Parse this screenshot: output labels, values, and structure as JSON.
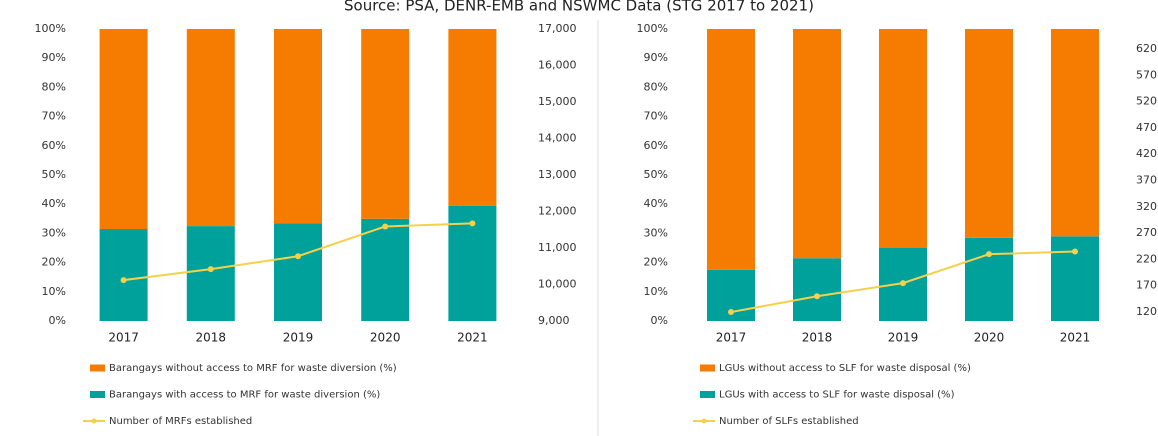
{
  "source": "Source: PSA, DENR-EMB and NSWMC Data (STG 2017 to 2021)",
  "chart_data": [
    {
      "type": "bar",
      "stacked": true,
      "categories": [
        "2017",
        "2018",
        "2019",
        "2020",
        "2021"
      ],
      "ylim": [
        0,
        100
      ],
      "yticks": [
        {
          "value": 0,
          "label": "0%"
        },
        {
          "value": 10,
          "label": "10%"
        },
        {
          "value": 20,
          "label": "20%"
        },
        {
          "value": 30,
          "label": "30%"
        },
        {
          "value": 40,
          "label": "40%"
        },
        {
          "value": 50,
          "label": "50%"
        },
        {
          "value": 60,
          "label": "60%"
        },
        {
          "value": 70,
          "label": "70%"
        },
        {
          "value": 80,
          "label": "80%"
        },
        {
          "value": 90,
          "label": "90%"
        },
        {
          "value": 100,
          "label": "100%"
        }
      ],
      "y2lim": [
        9000,
        17000
      ],
      "y2ticks": [
        {
          "value": 9000,
          "label": "9,000"
        },
        {
          "value": 10000,
          "label": "10,000"
        },
        {
          "value": 11000,
          "label": "11,000"
        },
        {
          "value": 12000,
          "label": "12,000"
        },
        {
          "value": 13000,
          "label": "13,000"
        },
        {
          "value": 14000,
          "label": "14,000"
        },
        {
          "value": 15000,
          "label": "15,000"
        },
        {
          "value": 16000,
          "label": "16,000"
        },
        {
          "value": 17000,
          "label": "17,000"
        }
      ],
      "series": [
        {
          "name": "Barangays without access to MRF for waste diversion (%)",
          "color": "#f57c00",
          "values": [
            68.5,
            67.5,
            66.5,
            65,
            60.5
          ]
        },
        {
          "name": "Barangays with access to MRF for waste diversion (%)",
          "color": "#00a19b",
          "values": [
            31.5,
            32.5,
            33.5,
            35,
            39.5
          ]
        },
        {
          "name": "Number of MRFs established",
          "color": "#f5d04a",
          "type": "line",
          "axis": "y2",
          "values": [
            10120,
            10420,
            10775,
            11590,
            11675
          ]
        }
      ]
    },
    {
      "type": "bar",
      "stacked": true,
      "categories": [
        "2017",
        "2018",
        "2019",
        "2020",
        "2021"
      ],
      "ylim": [
        0,
        100
      ],
      "yticks": [
        {
          "value": 0,
          "label": "0%"
        },
        {
          "value": 10,
          "label": "10%"
        },
        {
          "value": 20,
          "label": "20%"
        },
        {
          "value": 30,
          "label": "30%"
        },
        {
          "value": 40,
          "label": "40%"
        },
        {
          "value": 50,
          "label": "50%"
        },
        {
          "value": 60,
          "label": "60%"
        },
        {
          "value": 70,
          "label": "70%"
        },
        {
          "value": 80,
          "label": "80%"
        },
        {
          "value": 90,
          "label": "90%"
        },
        {
          "value": 100,
          "label": "100%"
        }
      ],
      "y2lim": [
        103,
        658
      ],
      "y2ticks": [
        120,
        170,
        220,
        270,
        320,
        370,
        420,
        470,
        520,
        570,
        620
      ],
      "series": [
        {
          "name": "LGUs without access to SLF for waste disposal (%)",
          "color": "#f57c00",
          "values": [
            82.5,
            78.5,
            75,
            71.5,
            71
          ]
        },
        {
          "name": "LGUs with access to SLF for waste disposal (%)",
          "color": "#00a19b",
          "values": [
            17.5,
            21.5,
            25,
            28.5,
            29
          ]
        },
        {
          "name": "Number of SLFs established",
          "color": "#f5d04a",
          "type": "line",
          "axis": "y2",
          "values": [
            120,
            150,
            175,
            230,
            235
          ]
        }
      ]
    }
  ]
}
